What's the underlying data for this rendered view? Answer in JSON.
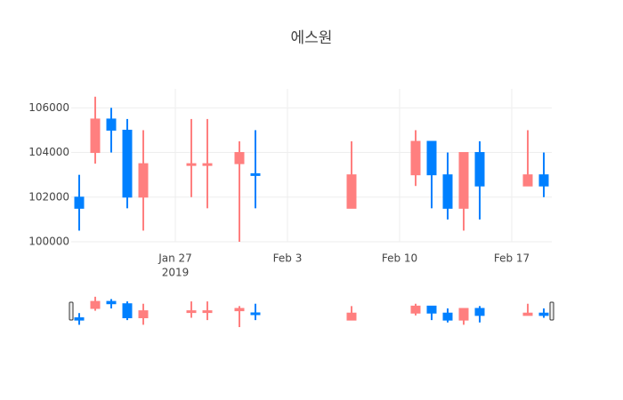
{
  "chart_data": {
    "type": "candlestick",
    "title": "에스원",
    "x": [
      "2019-01-21",
      "2019-01-22",
      "2019-01-23",
      "2019-01-24",
      "2019-01-25",
      "2019-01-28",
      "2019-01-29",
      "2019-01-31",
      "2019-02-01",
      "2019-02-07",
      "2019-02-11",
      "2019-02-12",
      "2019-02-13",
      "2019-02-14",
      "2019-02-15",
      "2019-02-18",
      "2019-02-19"
    ],
    "open": [
      102000,
      104000,
      105500,
      105000,
      102000,
      103500,
      103500,
      103500,
      103050,
      101500,
      103000,
      104500,
      103000,
      101500,
      104000,
      102500,
      103000
    ],
    "high": [
      103000,
      106500,
      106000,
      105500,
      105000,
      105500,
      105500,
      104500,
      105000,
      104500,
      105000,
      104500,
      104000,
      104000,
      104500,
      105000,
      104000
    ],
    "low": [
      100500,
      103500,
      104000,
      101500,
      100500,
      102000,
      101500,
      100000,
      101500,
      101500,
      102500,
      101500,
      101000,
      100500,
      101000,
      102500,
      102000
    ],
    "close": [
      101500,
      105500,
      105000,
      102000,
      103500,
      103500,
      103500,
      104000,
      103000,
      103000,
      104500,
      103000,
      101500,
      104000,
      102500,
      103000,
      102500
    ],
    "increasing_color": "#ff7f7f",
    "decreasing_color": "#0080ff",
    "xlim": [
      "2019-01-20 12:00",
      "2019-02-19 12:00"
    ],
    "xticks": [
      {
        "value": "2019-01-27",
        "label": "Jan 27"
      },
      {
        "value": "2019-02-03",
        "label": "Feb 3"
      },
      {
        "value": "2019-02-10",
        "label": "Feb 10"
      },
      {
        "value": "2019-02-17",
        "label": "Feb 17"
      }
    ],
    "xtick_year": "2019",
    "ylim": [
      100000,
      106850
    ],
    "yticks": [
      100000,
      102000,
      104000,
      106000
    ],
    "grid": true,
    "rangeslider": true
  }
}
